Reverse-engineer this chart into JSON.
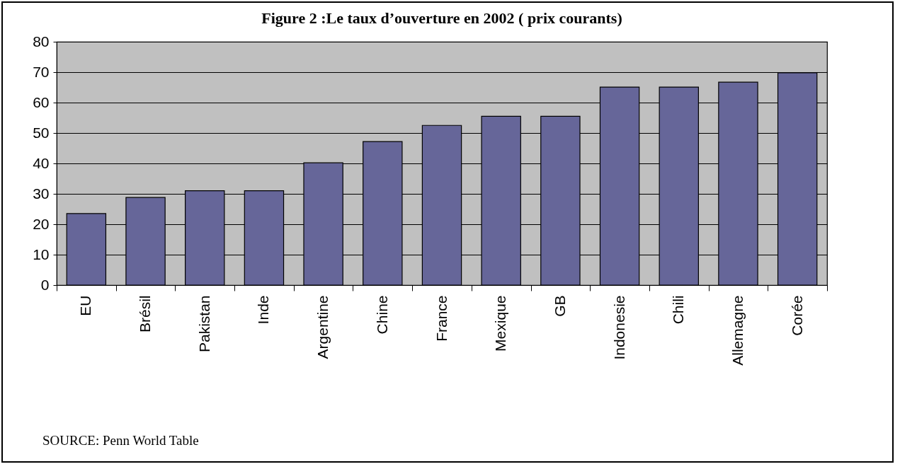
{
  "chart_data": {
    "type": "bar",
    "title": "Figure 2 :Le taux d’ouverture en 2002 ( prix courants)",
    "categories": [
      "EU",
      "Brésil",
      "Pakistan",
      "Inde",
      "Argentine",
      "Chine",
      "France",
      "Mexique",
      "GB",
      "Indonesie",
      "Chili",
      "Allemagne",
      "Corée"
    ],
    "values": [
      23.5,
      28.8,
      31,
      31,
      40.2,
      47.2,
      52.5,
      55.5,
      55.5,
      65.1,
      65.1,
      66.7,
      69.8
    ],
    "color": "#666699",
    "ylim": [
      0,
      80
    ],
    "yticks": [
      0,
      10,
      20,
      30,
      40,
      50,
      60,
      70,
      80
    ],
    "grid": "y",
    "annotations": [
      "SOURCE: Penn World Table"
    ]
  }
}
